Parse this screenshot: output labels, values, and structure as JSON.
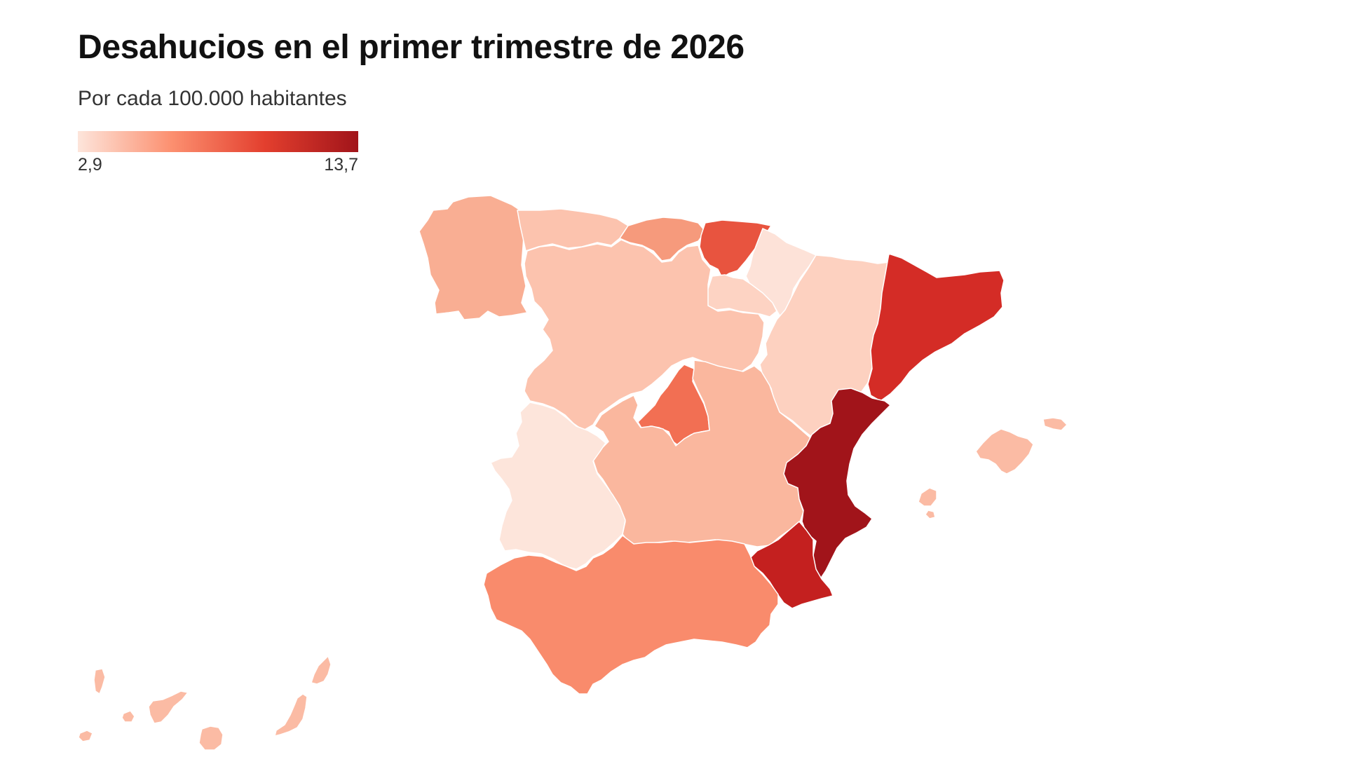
{
  "header": {
    "title": "Desahucios en el primer trimestre de 2026",
    "subtitle": "Por cada 100.000 habitantes"
  },
  "legend": {
    "min_label": "2,9",
    "max_label": "13,7",
    "min_value": 2.9,
    "max_value": 13.7,
    "colors": [
      "#fde5db",
      "#fc9070",
      "#e33f2e",
      "#a1141a"
    ]
  },
  "map": {
    "type": "choropleth",
    "regions": [
      {
        "id": "galicia",
        "color": "#f9ae93"
      },
      {
        "id": "asturias",
        "color": "#fcc3ae"
      },
      {
        "id": "cantabria",
        "color": "#f69a7c"
      },
      {
        "id": "pais-vasco",
        "color": "#e8543f"
      },
      {
        "id": "navarra",
        "color": "#fde2d8"
      },
      {
        "id": "la-rioja",
        "color": "#fdd3c3"
      },
      {
        "id": "aragon",
        "color": "#fdd1c0"
      },
      {
        "id": "cataluna",
        "color": "#d42c26"
      },
      {
        "id": "castilla-y-leon",
        "color": "#fcc3ae"
      },
      {
        "id": "madrid",
        "color": "#f26f53"
      },
      {
        "id": "castilla-la-mancha",
        "color": "#fab79e"
      },
      {
        "id": "extremadura",
        "color": "#fde5db"
      },
      {
        "id": "comunidad-valenciana",
        "color": "#a1141a"
      },
      {
        "id": "murcia",
        "color": "#c4201f"
      },
      {
        "id": "andalucia",
        "color": "#f98b6c"
      },
      {
        "id": "baleares",
        "color": "#fbbba4"
      },
      {
        "id": "canarias",
        "color": "#fbbba4"
      }
    ]
  }
}
